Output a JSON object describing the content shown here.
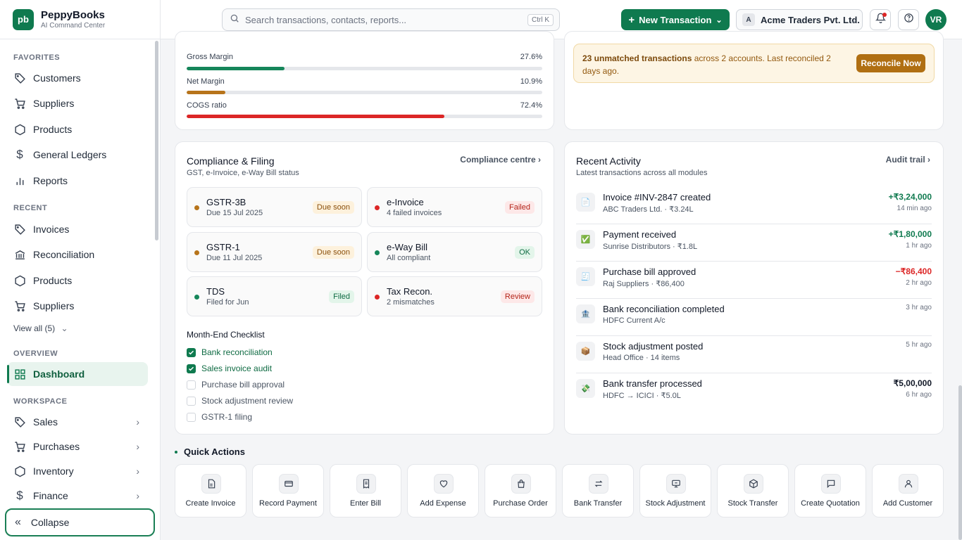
{
  "brand": {
    "logo": "pb",
    "name": "PeppyBooks",
    "subtitle": "AI Command Center"
  },
  "sidebar": {
    "favorites_label": "FAVORITES",
    "favorites": [
      {
        "label": "Customers",
        "icon": "tag-icon"
      },
      {
        "label": "Suppliers",
        "icon": "cart-icon"
      },
      {
        "label": "Products",
        "icon": "hexagon-icon"
      },
      {
        "label": "General Ledgers",
        "icon": "dollar-icon"
      },
      {
        "label": "Reports",
        "icon": "bar-chart-icon"
      }
    ],
    "recent_label": "RECENT",
    "recent": [
      {
        "label": "Invoices",
        "icon": "tag-icon"
      },
      {
        "label": "Reconciliation",
        "icon": "bank-icon"
      },
      {
        "label": "Products",
        "icon": "hexagon-icon"
      },
      {
        "label": "Suppliers",
        "icon": "cart-icon"
      }
    ],
    "view_all": "View all (5)",
    "overview_label": "OVERVIEW",
    "dashboard": "Dashboard",
    "workspace_label": "WORKSPACE",
    "workspace": [
      {
        "label": "Sales",
        "icon": "tag-icon"
      },
      {
        "label": "Purchases",
        "icon": "cart-icon"
      },
      {
        "label": "Inventory",
        "icon": "hexagon-icon"
      },
      {
        "label": "Finance",
        "icon": "dollar-icon"
      }
    ],
    "collapse": "Collapse"
  },
  "topbar": {
    "search_placeholder": "Search transactions, contacts, reports...",
    "search_shortcut": "Ctrl K",
    "new_transaction": "New Transaction",
    "company_initial": "A",
    "company": "Acme Traders Pvt. Ltd.",
    "avatar": "VR"
  },
  "margins": [
    {
      "label": "Gross Margin",
      "value": "27.6%",
      "fraction": 0.276,
      "color": "#16865a"
    },
    {
      "label": "Net Margin",
      "value": "10.9%",
      "fraction": 0.109,
      "color": "#b7741b"
    },
    {
      "label": "COGS ratio",
      "value": "72.4%",
      "fraction": 0.724,
      "color": "#dc2626"
    }
  ],
  "alert": {
    "bold": "23 unmatched transactions",
    "rest": " across 2 accounts. Last reconciled 2 days ago.",
    "button": "Reconcile Now"
  },
  "compliance": {
    "title": "Compliance & Filing",
    "subtitle": "GST, e-Invoice, e-Way Bill status",
    "link": "Compliance centre",
    "filings": [
      {
        "name": "GSTR-3B",
        "desc": "Due 15 Jul 2025",
        "status": "Due soon",
        "tone": "amber",
        "dot": "#b7741b"
      },
      {
        "name": "e-Invoice",
        "desc": "4 failed invoices",
        "status": "Failed",
        "tone": "red",
        "dot": "#dc2626"
      },
      {
        "name": "GSTR-1",
        "desc": "Due 11 Jul 2025",
        "status": "Due soon",
        "tone": "amber",
        "dot": "#b7741b"
      },
      {
        "name": "e-Way Bill",
        "desc": "All compliant",
        "status": "OK",
        "tone": "green",
        "dot": "#16865a"
      },
      {
        "name": "TDS",
        "desc": "Filed for Jun",
        "status": "Filed",
        "tone": "green",
        "dot": "#16865a"
      },
      {
        "name": "Tax Recon.",
        "desc": "2 mismatches",
        "status": "Review",
        "tone": "red",
        "dot": "#dc2626"
      }
    ],
    "checklist_title": "Month-End Checklist",
    "checklist": [
      {
        "label": "Bank reconciliation",
        "done": true
      },
      {
        "label": "Sales invoice audit",
        "done": true
      },
      {
        "label": "Purchase bill approval",
        "done": false
      },
      {
        "label": "Stock adjustment review",
        "done": false
      },
      {
        "label": "GSTR-1 filing",
        "done": false
      }
    ]
  },
  "activity": {
    "title": "Recent Activity",
    "subtitle": "Latest transactions across all modules",
    "link": "Audit trail",
    "items": [
      {
        "icon": "document-icon",
        "glyph": "📄",
        "title": "Invoice #INV-2847 created",
        "sub": "ABC Traders Ltd. · ₹3.24L",
        "amount": "+₹3,24,000",
        "amount_color": "#0f7a4f",
        "time": "14 min ago"
      },
      {
        "icon": "check-icon",
        "glyph": "✅",
        "title": "Payment received",
        "sub": "Sunrise Distributors · ₹1.8L",
        "amount": "+₹1,80,000",
        "amount_color": "#0f7a4f",
        "time": "1 hr ago"
      },
      {
        "icon": "receipt-icon",
        "glyph": "🧾",
        "title": "Purchase bill approved",
        "sub": "Raj Suppliers · ₹86,400",
        "amount": "−₹86,400",
        "amount_color": "#dc2626",
        "time": "2 hr ago"
      },
      {
        "icon": "bank-icon",
        "glyph": "🏦",
        "title": "Bank reconciliation completed",
        "sub": "HDFC Current A/c",
        "amount": "",
        "amount_color": "#111827",
        "time": "3 hr ago"
      },
      {
        "icon": "box-icon",
        "glyph": "📦",
        "title": "Stock adjustment posted",
        "sub": "Head Office · 14 items",
        "amount": "",
        "amount_color": "#111827",
        "time": "5 hr ago"
      },
      {
        "icon": "money-icon",
        "glyph": "💸",
        "title": "Bank transfer processed",
        "sub": "HDFC → ICICI · ₹5.0L",
        "amount": "₹5,00,000",
        "amount_color": "#111827",
        "time": "6 hr ago"
      }
    ]
  },
  "quick_actions": {
    "title": "Quick Actions",
    "items": [
      {
        "label": "Create Invoice",
        "icon": "document-icon"
      },
      {
        "label": "Record Payment",
        "icon": "credit-card-icon"
      },
      {
        "label": "Enter Bill",
        "icon": "receipt-icon"
      },
      {
        "label": "Add Expense",
        "icon": "heart-icon"
      },
      {
        "label": "Purchase Order",
        "icon": "shopping-bag-icon"
      },
      {
        "label": "Bank Transfer",
        "icon": "transfer-icon"
      },
      {
        "label": "Stock Adjustment",
        "icon": "monitor-icon"
      },
      {
        "label": "Stock Transfer",
        "icon": "package-icon"
      },
      {
        "label": "Create Quotation",
        "icon": "message-icon"
      },
      {
        "label": "Add Customer",
        "icon": "user-icon"
      }
    ]
  }
}
